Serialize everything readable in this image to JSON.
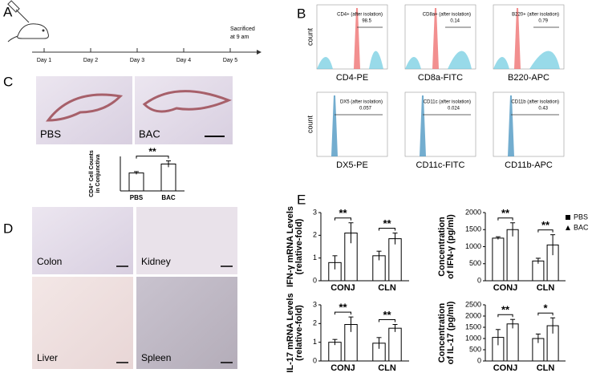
{
  "figure": {
    "panels": [
      "A",
      "B",
      "C",
      "D",
      "E"
    ],
    "timeline": {
      "days": [
        "Day 1",
        "Day 2",
        "Day 3",
        "Day 4",
        "Day 5"
      ],
      "note": [
        "Sacrificed",
        "at 9 am"
      ]
    },
    "flow": {
      "ylabel": "count",
      "plots": [
        {
          "xlabel": "CD4-PE",
          "gate_label": "CD4+ (after isolation)",
          "gate_value": 98.5
        },
        {
          "xlabel": "CD8a-FITC",
          "gate_label": "CD8a+ (after isolation)",
          "gate_value": 0.14
        },
        {
          "xlabel": "B220-APC",
          "gate_label": "B220+ (after isolation)",
          "gate_value": 0.79
        },
        {
          "xlabel": "DX5-PE",
          "gate_label": "DX5 (after isolation)",
          "gate_value": 0.057
        },
        {
          "xlabel": "CD11c-FITC",
          "gate_label": "CD11c (after isolation)",
          "gate_value": 0.024
        },
        {
          "xlabel": "CD11b-APC",
          "gate_label": "CD11b (after isolation)",
          "gate_value": 0.43
        }
      ]
    },
    "histology_c": [
      "PBS",
      "BAC"
    ],
    "histology_d": [
      "Colon",
      "Kidney",
      "Liver",
      "Spleen"
    ]
  },
  "chart_data": [
    {
      "type": "bar",
      "ylabel": [
        "CD4⁺ Cell Counts",
        "in Conjunctiva"
      ],
      "categories": [
        "PBS",
        "BAC"
      ],
      "values": [
        52,
        78
      ],
      "errors": [
        4,
        9
      ],
      "color": "#ffffff",
      "ylim": [
        0,
        100
      ],
      "annotation": "**"
    },
    {
      "type": "grouped-bar",
      "ylabel": [
        "IFN-γ mRNA Levels",
        "(relative-fold)"
      ],
      "categories": [
        "CONJ",
        "CLN"
      ],
      "ylim": [
        0,
        3
      ],
      "yticks": [
        0,
        1,
        2,
        3
      ],
      "series": [
        {
          "name": "PBS",
          "color": "#ffffff",
          "marker": "square",
          "values": [
            0.8,
            1.1
          ],
          "errors": [
            0.3,
            0.2
          ]
        },
        {
          "name": "BAC",
          "color": "#ffffff",
          "marker": "triangle",
          "values": [
            2.1,
            1.85
          ],
          "errors": [
            0.45,
            0.25
          ]
        }
      ],
      "annotations": [
        "**",
        "**"
      ]
    },
    {
      "type": "grouped-bar",
      "ylabel": [
        "Concentration",
        "of IFN-γ (pg/ml)"
      ],
      "categories": [
        "CONJ",
        "CLN"
      ],
      "ylim": [
        0,
        2000
      ],
      "yticks": [
        0,
        500,
        1000,
        1500,
        2000
      ],
      "series": [
        {
          "name": "PBS",
          "color": "#ffffff",
          "marker": "square",
          "values": [
            1250,
            580
          ],
          "errors": [
            40,
            80
          ]
        },
        {
          "name": "BAC",
          "color": "#ffffff",
          "marker": "triangle",
          "values": [
            1500,
            1050
          ],
          "errors": [
            200,
            300
          ]
        }
      ],
      "annotations": [
        "**",
        "**"
      ],
      "legend": "upper right"
    },
    {
      "type": "grouped-bar",
      "ylabel": [
        "IL-17 mRNA Levels",
        "(relative-fold)"
      ],
      "categories": [
        "CONJ",
        "CLN"
      ],
      "ylim": [
        0,
        3
      ],
      "yticks": [
        0,
        1,
        2,
        3
      ],
      "series": [
        {
          "name": "PBS",
          "color": "#ffffff",
          "marker": "square",
          "values": [
            1.0,
            0.95
          ],
          "errors": [
            0.15,
            0.3
          ]
        },
        {
          "name": "BAC",
          "color": "#ffffff",
          "marker": "triangle",
          "values": [
            1.95,
            1.75
          ],
          "errors": [
            0.4,
            0.2
          ]
        }
      ],
      "annotations": [
        "**",
        "**"
      ]
    },
    {
      "type": "grouped-bar",
      "ylabel": [
        "Concentration",
        "of IL-17 (pg/ml)"
      ],
      "categories": [
        "CONJ",
        "CLN"
      ],
      "ylim": [
        0,
        2500
      ],
      "yticks": [
        0,
        500,
        1000,
        1500,
        2000,
        2500
      ],
      "series": [
        {
          "name": "PBS",
          "color": "#ffffff",
          "marker": "square",
          "values": [
            1050,
            1000
          ],
          "errors": [
            350,
            200
          ]
        },
        {
          "name": "BAC",
          "color": "#ffffff",
          "marker": "triangle",
          "values": [
            1650,
            1570
          ],
          "errors": [
            200,
            350
          ]
        }
      ],
      "annotations": [
        "**",
        "*"
      ]
    }
  ]
}
